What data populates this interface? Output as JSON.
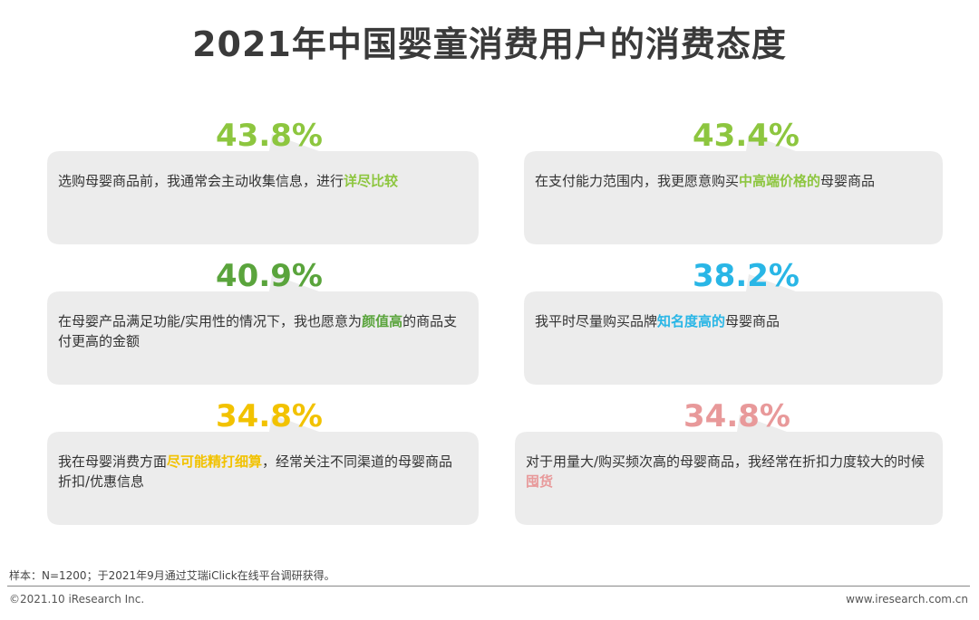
{
  "title": "2021年中国婴童消费用户的消费态度",
  "chart_data": {
    "type": "table",
    "title": "2021年中国婴童消费用户的消费态度",
    "items": [
      {
        "value": "43.8%",
        "color": "#8dc63f",
        "text_before": "选购母婴商品前，我通常会主动收集信息，进行",
        "highlight": "详尽比较",
        "text_after": ""
      },
      {
        "value": "43.4%",
        "color": "#8dc63f",
        "text_before": "在支付能力范围内，我更愿意购买",
        "highlight": "中高端价格的",
        "text_after": "母婴商品"
      },
      {
        "value": "40.9%",
        "color": "#5aa43c",
        "text_before": "在母婴产品满足功能/实用性的情况下，我也愿意为",
        "highlight": "颜值高",
        "text_after": "的商品支付更高的金额"
      },
      {
        "value": "38.2%",
        "color": "#29b6e6",
        "text_before": "我平时尽量购买品牌",
        "highlight": "知名度高的",
        "text_after": "母婴商品"
      },
      {
        "value": "34.8%",
        "color": "#f2c200",
        "text_before": "我在母婴消费方面",
        "highlight": "尽可能精打细算",
        "text_after": "，经常关注不同渠道的母婴商品折扣/优惠信息"
      },
      {
        "value": "34.8%",
        "color": "#e8999a",
        "text_before": "对于用量大/购买频次高的母婴商品，我经常在折扣力度较大的时候",
        "highlight": "囤货",
        "text_after": ""
      }
    ]
  },
  "footer": {
    "note": "样本：N=1200；于2021年9月通过艾瑞iClick在线平台调研获得。",
    "copyright": "©2021.10 iResearch Inc.",
    "website": "www.iresearch.com.cn"
  },
  "colors": {
    "bubble": "#ececec",
    "title": "#3a3a3a"
  }
}
